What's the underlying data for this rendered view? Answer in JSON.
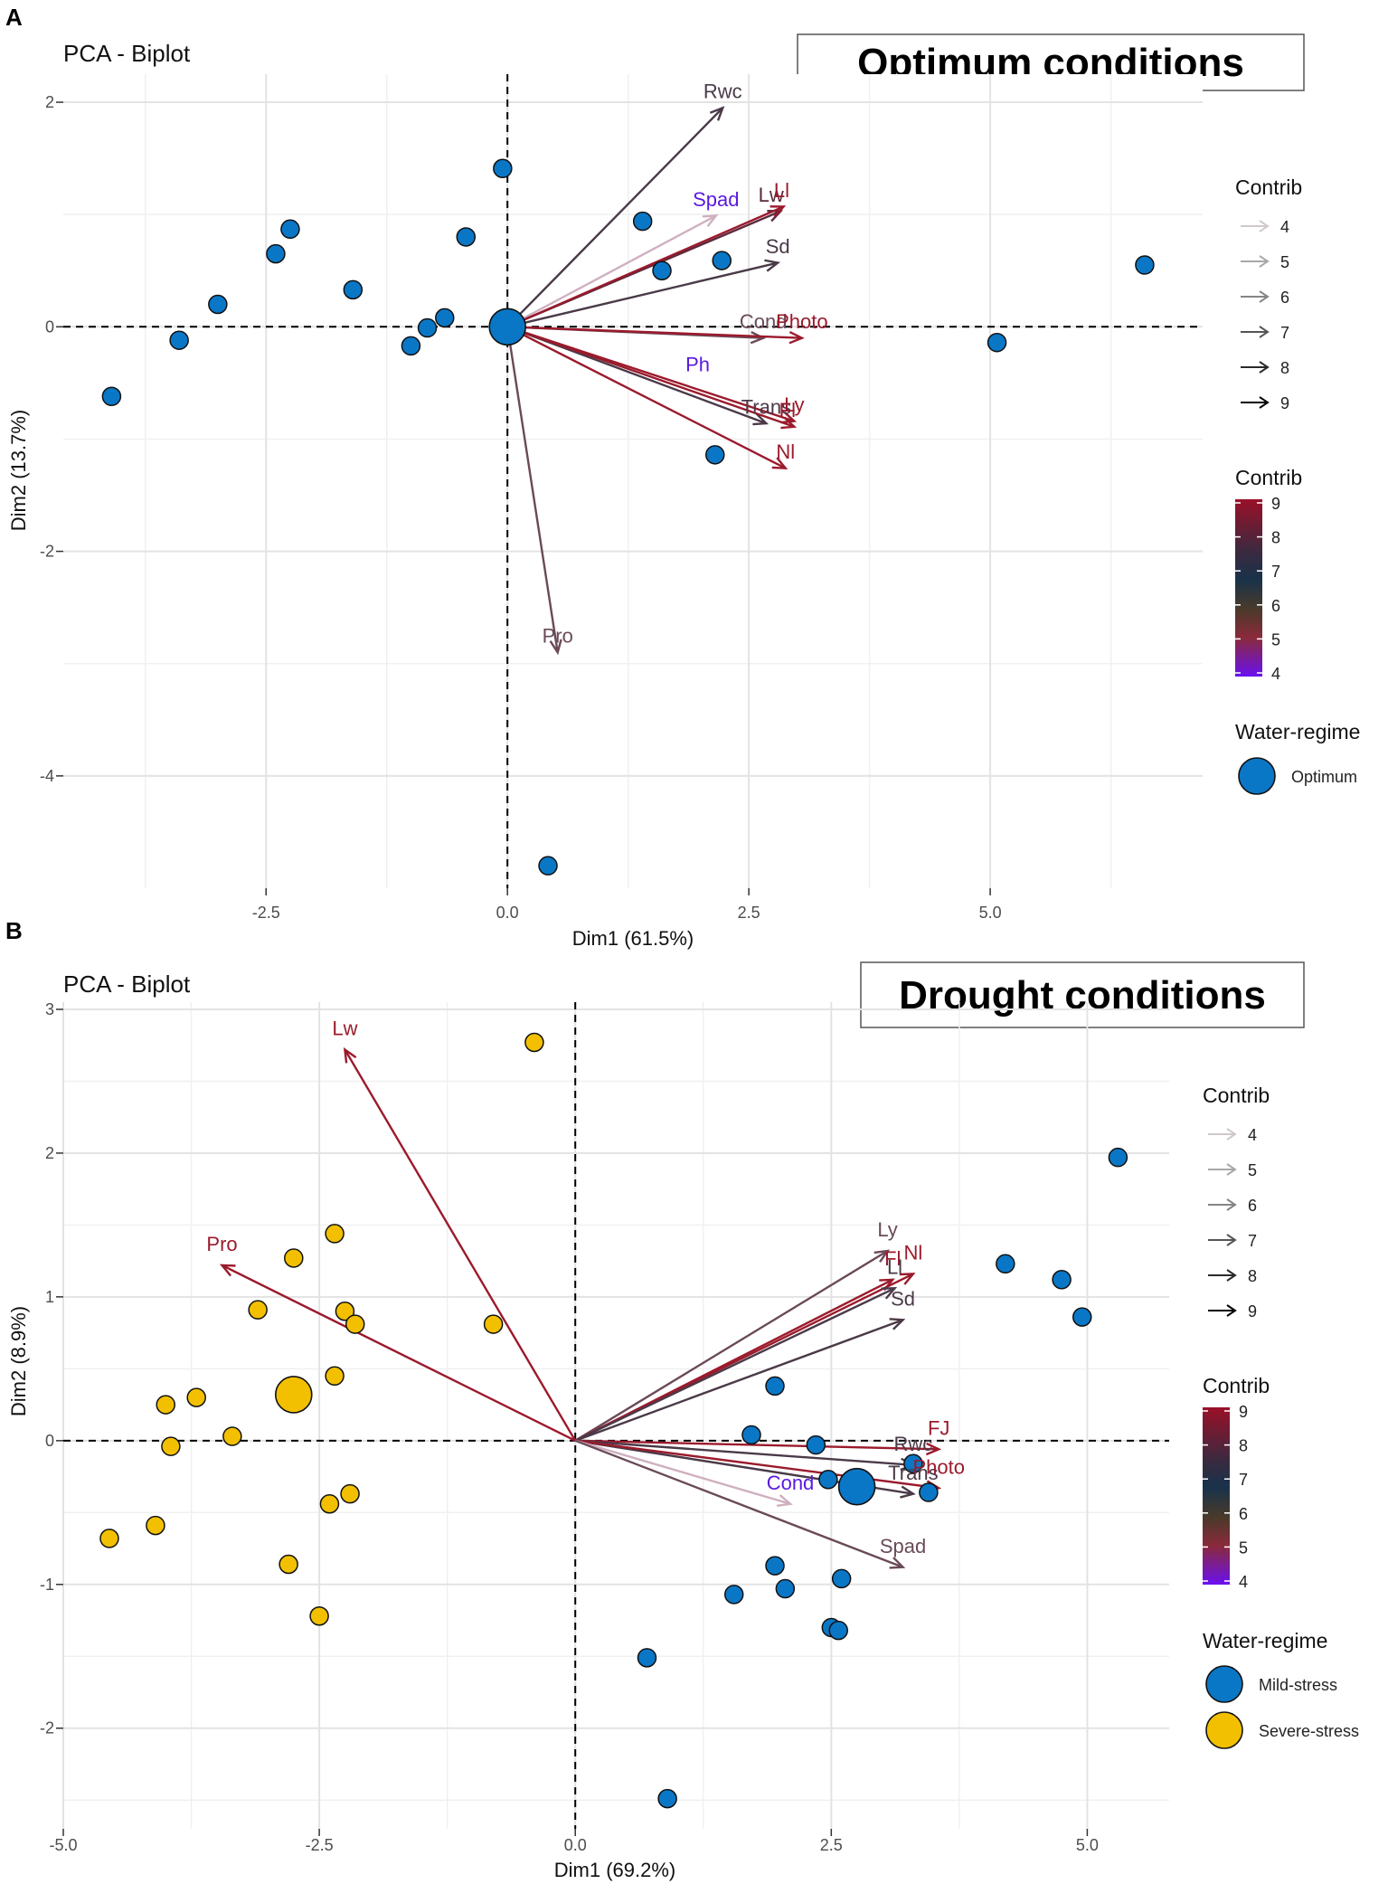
{
  "chart_data": [
    {
      "type": "scatter",
      "panel_label": "A",
      "title": "PCA - Biplot",
      "condition_label": "Optimum conditions",
      "xlabel": "Dim1 (61.5%)",
      "ylabel": "Dim2 (13.7%)",
      "xlim": [
        -4.6,
        7.2
      ],
      "ylim": [
        -5.0,
        2.25
      ],
      "xticks": [
        -2.5,
        0.0,
        2.5,
        5.0
      ],
      "xtick_labels": [
        "-2.5",
        "0.0",
        "2.5",
        "5.0"
      ],
      "yticks": [
        2,
        0,
        -2,
        -4
      ],
      "ytick_labels": [
        "2",
        "0",
        "-2",
        "-4"
      ],
      "grid": true,
      "points": [
        {
          "x": -4.1,
          "y": -0.62,
          "group": "Optimum"
        },
        {
          "x": -3.4,
          "y": -0.12,
          "group": "Optimum"
        },
        {
          "x": -3.0,
          "y": 0.2,
          "group": "Optimum"
        },
        {
          "x": -2.4,
          "y": 0.65,
          "group": "Optimum"
        },
        {
          "x": -2.25,
          "y": 0.87,
          "group": "Optimum"
        },
        {
          "x": -1.6,
          "y": 0.33,
          "group": "Optimum"
        },
        {
          "x": -1.0,
          "y": -0.17,
          "group": "Optimum"
        },
        {
          "x": -0.83,
          "y": -0.01,
          "group": "Optimum"
        },
        {
          "x": -0.65,
          "y": 0.08,
          "group": "Optimum"
        },
        {
          "x": -0.43,
          "y": 0.8,
          "group": "Optimum"
        },
        {
          "x": -0.05,
          "y": 1.41,
          "group": "Optimum"
        },
        {
          "x": 0.42,
          "y": -4.8,
          "group": "Optimum"
        },
        {
          "x": 1.4,
          "y": 0.94,
          "group": "Optimum"
        },
        {
          "x": 1.6,
          "y": 0.5,
          "group": "Optimum"
        },
        {
          "x": 2.22,
          "y": 0.59,
          "group": "Optimum"
        },
        {
          "x": 2.15,
          "y": -1.14,
          "group": "Optimum"
        },
        {
          "x": 5.07,
          "y": -0.14,
          "group": "Optimum"
        },
        {
          "x": 6.6,
          "y": 0.55,
          "group": "Optimum"
        }
      ],
      "centroids": [
        {
          "x": 0.0,
          "y": 0.0,
          "group": "Optimum"
        }
      ],
      "arrows": [
        {
          "name": "Rwc",
          "x": 2.23,
          "y": 1.95,
          "contrib": 7.2,
          "lx": 2.23,
          "ly": 2.1
        },
        {
          "name": "Spad",
          "x": 2.16,
          "y": 0.99,
          "contrib": 4.2,
          "lx": 2.16,
          "ly": 1.14
        },
        {
          "name": "Lw",
          "x": 2.83,
          "y": 1.03,
          "contrib": 8.1,
          "lx": 2.73,
          "ly": 1.18
        },
        {
          "name": "Ll",
          "x": 2.86,
          "y": 1.07,
          "contrib": 8.8,
          "lx": 2.84,
          "ly": 1.22
        },
        {
          "name": "Sd",
          "x": 2.8,
          "y": 0.57,
          "contrib": 6.7,
          "lx": 2.8,
          "ly": 0.72
        },
        {
          "name": "Cond",
          "x": 2.65,
          "y": -0.1,
          "contrib": 6.2,
          "lx": 2.65,
          "ly": 0.05
        },
        {
          "name": "Photo",
          "x": 3.05,
          "y": -0.1,
          "contrib": 8.9,
          "lx": 3.05,
          "ly": 0.05
        },
        {
          "name": "Ph",
          "x": 1.97,
          "y": -0.33,
          "contrib": 4.1,
          "lx": 1.97,
          "ly": -0.33,
          "label_only": true
        },
        {
          "name": "Trans",
          "x": 2.68,
          "y": -0.86,
          "contrib": 7.0,
          "lx": 2.68,
          "ly": -0.71
        },
        {
          "name": "Ly",
          "x": 2.97,
          "y": -0.84,
          "contrib": 8.9,
          "lx": 2.97,
          "ly": -0.69
        },
        {
          "name": "Fl",
          "x": 2.97,
          "y": -0.89,
          "contrib": 8.9,
          "lx": 2.9,
          "ly": -0.74
        },
        {
          "name": "Nl",
          "x": 2.88,
          "y": -1.26,
          "contrib": 8.9,
          "lx": 2.88,
          "ly": -1.11
        },
        {
          "name": "Pro",
          "x": 0.52,
          "y": -2.9,
          "contrib": 6.3,
          "lx": 0.52,
          "ly": -2.75
        }
      ],
      "legend": {
        "contrib_title": "Contrib",
        "contrib_arrow_labels": [
          "4",
          "5",
          "6",
          "7",
          "8",
          "9"
        ],
        "colorbar_title": "Contrib",
        "colorbar_labels": [
          "9",
          "8",
          "7",
          "6",
          "5",
          "4"
        ],
        "water_title": "Water-regime",
        "water_items": [
          {
            "label": "Optimum",
            "color": "#0a77c6"
          }
        ]
      }
    },
    {
      "type": "scatter",
      "panel_label": "B",
      "title": "PCA - Biplot",
      "condition_label": "Drought conditions",
      "xlabel": "Dim1 (69.2%)",
      "ylabel": "Dim2 (8.9%)",
      "xlim": [
        -5.0,
        5.8
      ],
      "ylim": [
        -2.7,
        3.05
      ],
      "xticks": [
        -5.0,
        -2.5,
        0.0,
        2.5,
        5.0
      ],
      "xtick_labels": [
        "-5.0",
        "-2.5",
        "0.0",
        "2.5",
        "5.0"
      ],
      "yticks": [
        3,
        2,
        1,
        0,
        -1,
        -2
      ],
      "ytick_labels": [
        "3",
        "2",
        "1",
        "0",
        "-1",
        "-2"
      ],
      "grid": true,
      "points": [
        {
          "x": -0.4,
          "y": 2.77,
          "group": "Severe-stress"
        },
        {
          "x": -2.35,
          "y": 1.44,
          "group": "Severe-stress"
        },
        {
          "x": -2.75,
          "y": 1.27,
          "group": "Severe-stress"
        },
        {
          "x": -3.1,
          "y": 0.91,
          "group": "Severe-stress"
        },
        {
          "x": -2.25,
          "y": 0.9,
          "group": "Severe-stress"
        },
        {
          "x": -2.15,
          "y": 0.81,
          "group": "Severe-stress"
        },
        {
          "x": -0.8,
          "y": 0.81,
          "group": "Severe-stress"
        },
        {
          "x": -2.35,
          "y": 0.45,
          "group": "Severe-stress"
        },
        {
          "x": -3.7,
          "y": 0.3,
          "group": "Severe-stress"
        },
        {
          "x": -4.0,
          "y": 0.25,
          "group": "Severe-stress"
        },
        {
          "x": -3.35,
          "y": 0.03,
          "group": "Severe-stress"
        },
        {
          "x": -3.95,
          "y": -0.04,
          "group": "Severe-stress"
        },
        {
          "x": -2.2,
          "y": -0.37,
          "group": "Severe-stress"
        },
        {
          "x": -2.4,
          "y": -0.44,
          "group": "Severe-stress"
        },
        {
          "x": -4.55,
          "y": -0.68,
          "group": "Severe-stress"
        },
        {
          "x": -4.1,
          "y": -0.59,
          "group": "Severe-stress"
        },
        {
          "x": -2.8,
          "y": -0.86,
          "group": "Severe-stress"
        },
        {
          "x": -2.5,
          "y": -1.22,
          "group": "Severe-stress"
        },
        {
          "x": 5.3,
          "y": 1.97,
          "group": "Mild-stress"
        },
        {
          "x": 4.2,
          "y": 1.23,
          "group": "Mild-stress"
        },
        {
          "x": 4.75,
          "y": 1.12,
          "group": "Mild-stress"
        },
        {
          "x": 4.95,
          "y": 0.86,
          "group": "Mild-stress"
        },
        {
          "x": 1.95,
          "y": 0.38,
          "group": "Mild-stress"
        },
        {
          "x": 1.72,
          "y": 0.04,
          "group": "Mild-stress"
        },
        {
          "x": 2.35,
          "y": -0.03,
          "group": "Mild-stress"
        },
        {
          "x": 3.3,
          "y": -0.16,
          "group": "Mild-stress"
        },
        {
          "x": 2.47,
          "y": -0.27,
          "group": "Mild-stress"
        },
        {
          "x": 3.45,
          "y": -0.36,
          "group": "Mild-stress"
        },
        {
          "x": 1.95,
          "y": -0.87,
          "group": "Mild-stress"
        },
        {
          "x": 2.6,
          "y": -0.96,
          "group": "Mild-stress"
        },
        {
          "x": 1.55,
          "y": -1.07,
          "group": "Mild-stress"
        },
        {
          "x": 2.05,
          "y": -1.03,
          "group": "Mild-stress"
        },
        {
          "x": 2.5,
          "y": -1.3,
          "group": "Mild-stress"
        },
        {
          "x": 2.57,
          "y": -1.32,
          "group": "Mild-stress"
        },
        {
          "x": 0.7,
          "y": -1.51,
          "group": "Mild-stress"
        },
        {
          "x": 0.9,
          "y": -2.49,
          "group": "Mild-stress"
        }
      ],
      "centroids": [
        {
          "x": 2.75,
          "y": -0.32,
          "group": "Mild-stress"
        },
        {
          "x": -2.75,
          "y": 0.32,
          "group": "Severe-stress"
        }
      ],
      "arrows": [
        {
          "name": "Lw",
          "x": -2.25,
          "y": 2.72,
          "contrib": 8.9,
          "lx": -2.25,
          "ly": 2.87
        },
        {
          "name": "Pro",
          "x": -3.45,
          "y": 1.22,
          "contrib": 8.9,
          "lx": -3.45,
          "ly": 1.37
        },
        {
          "name": "Ly",
          "x": 3.05,
          "y": 1.32,
          "contrib": 6.4,
          "lx": 3.05,
          "ly": 1.47
        },
        {
          "name": "Nl",
          "x": 3.3,
          "y": 1.16,
          "contrib": 8.9,
          "lx": 3.3,
          "ly": 1.31
        },
        {
          "name": "Fl",
          "x": 3.1,
          "y": 1.12,
          "contrib": 8.5,
          "lx": 3.1,
          "ly": 1.27
        },
        {
          "name": "Ll",
          "x": 3.12,
          "y": 1.06,
          "contrib": 7.0,
          "lx": 3.12,
          "ly": 1.21
        },
        {
          "name": "Sd",
          "x": 3.2,
          "y": 0.84,
          "contrib": 6.6,
          "lx": 3.2,
          "ly": 0.99
        },
        {
          "name": "FJ",
          "x": 3.55,
          "y": -0.06,
          "contrib": 8.9,
          "lx": 3.55,
          "ly": 0.09
        },
        {
          "name": "Rwc",
          "x": 3.3,
          "y": -0.17,
          "contrib": 6.5,
          "lx": 3.3,
          "ly": -0.02
        },
        {
          "name": "Trans",
          "x": 3.3,
          "y": -0.37,
          "contrib": 6.8,
          "lx": 3.3,
          "ly": -0.22
        },
        {
          "name": "Photo",
          "x": 3.55,
          "y": -0.33,
          "contrib": 8.9,
          "lx": 3.55,
          "ly": -0.18
        },
        {
          "name": "Cond",
          "x": 2.1,
          "y": -0.44,
          "contrib": 4.0,
          "lx": 2.1,
          "ly": -0.29
        },
        {
          "name": "Spad",
          "x": 3.2,
          "y": -0.88,
          "contrib": 6.3,
          "lx": 3.2,
          "ly": -0.73
        }
      ],
      "legend": {
        "contrib_title": "Contrib",
        "contrib_arrow_labels": [
          "4",
          "5",
          "6",
          "7",
          "8",
          "9"
        ],
        "colorbar_title": "Contrib",
        "colorbar_labels": [
          "9",
          "8",
          "7",
          "6",
          "5",
          "4"
        ],
        "water_title": "Water-regime",
        "water_items": [
          {
            "label": "Mild-stress",
            "color": "#0a77c6"
          },
          {
            "label": "Severe-stress",
            "color": "#f2c000"
          }
        ]
      }
    }
  ]
}
